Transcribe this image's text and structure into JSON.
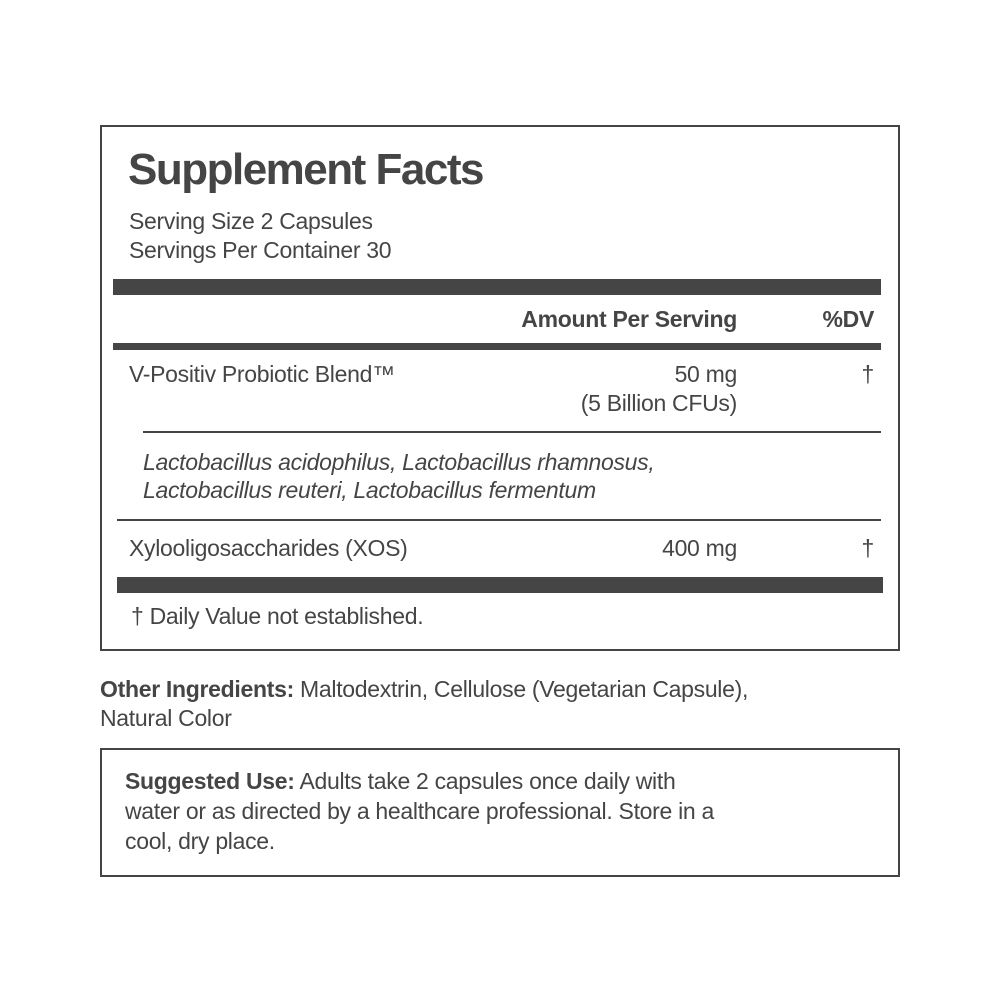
{
  "title": "Supplement Facts",
  "serving_size": "Serving Size 2 Capsules",
  "servings_per_container": "Servings Per Container 30",
  "header": {
    "amount": "Amount Per Serving",
    "dv": "%DV"
  },
  "rows": [
    {
      "name": "V-Positiv Probiotic Blend™",
      "amount": "50 mg",
      "amount_note": "(5 Billion CFUs)",
      "dv": "†",
      "sub_lines": [
        "Lactobacillus acidophilus, Lactobacillus rhamnosus,",
        "Lactobacillus reuteri, Lactobacillus fermentum"
      ]
    },
    {
      "name": "Xylooligosaccharides (XOS)",
      "amount": "400 mg",
      "dv": "†"
    }
  ],
  "footnote": "† Daily Value not established.",
  "other_ingredients": {
    "label": "Other Ingredients:",
    "line1": " Maltodextrin, Cellulose (Vegetarian Capsule),",
    "line2": "Natural Color"
  },
  "suggested_use": {
    "label": "Suggested Use:",
    "line1": " Adults take 2 capsules once daily with",
    "line2": "water or as directed by a healthcare professional. Store in a",
    "line3": "cool, dry place."
  },
  "colors": {
    "text": "#454545",
    "background": "#ffffff"
  }
}
